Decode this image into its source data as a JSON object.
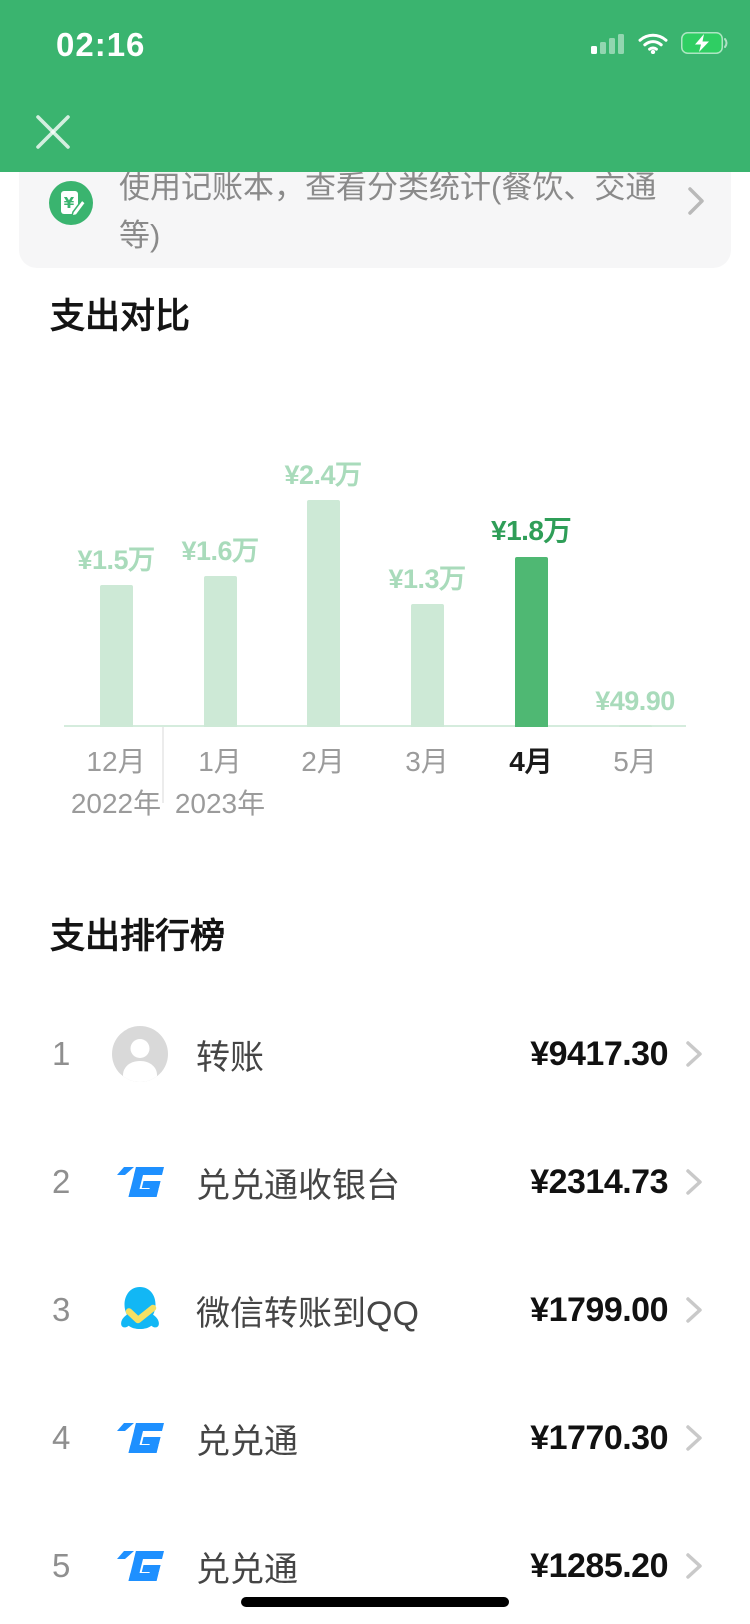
{
  "status_bar": {
    "time": "02:16"
  },
  "banner": {
    "text": "使用记账本，查看分类统计(餐饮、交通等)"
  },
  "sections": {
    "expense_comparison": "支出对比",
    "expense_ranking": "支出排行榜"
  },
  "chart_data": {
    "type": "bar",
    "title": "支出对比",
    "categories": [
      "12月",
      "1月",
      "2月",
      "3月",
      "4月",
      "5月"
    ],
    "values": [
      15000,
      16000,
      24000,
      13000,
      18000,
      49.9
    ],
    "value_labels": [
      "¥1.5万",
      "¥1.6万",
      "¥2.4万",
      "¥1.3万",
      "¥1.8万",
      "¥49.90"
    ],
    "highlight_index": 4,
    "year_markers": [
      {
        "index": 0,
        "label": "2022年"
      },
      {
        "index": 1,
        "label": "2023年"
      }
    ],
    "xlabel": "",
    "ylabel": "",
    "ylim": [
      0,
      24000
    ],
    "grid": false,
    "colors": {
      "bar": "#cde9d6",
      "bar_highlight": "#4fb873",
      "label": "#a9dbbb",
      "label_highlight": "#2f9e58",
      "axis": "#d5ecdd"
    }
  },
  "ranking": {
    "items": [
      {
        "rank": "1",
        "name": "转账",
        "amount": "¥9417.30",
        "icon": "person-avatar-icon"
      },
      {
        "rank": "2",
        "name": "兑兑通收银台",
        "amount": "¥2314.73",
        "icon": "duiduitong-logo-icon"
      },
      {
        "rank": "3",
        "name": "微信转账到QQ",
        "amount": "¥1799.00",
        "icon": "qq-penguin-icon"
      },
      {
        "rank": "4",
        "name": "兑兑通",
        "amount": "¥1770.30",
        "icon": "duiduitong-logo-icon"
      },
      {
        "rank": "5",
        "name": "兑兑通",
        "amount": "¥1285.20",
        "icon": "duiduitong-logo-icon"
      }
    ]
  },
  "colors": {
    "brand_green": "#3ab46f",
    "qq_blue": "#12b7f5",
    "logo_blue": "#1e90ff"
  }
}
